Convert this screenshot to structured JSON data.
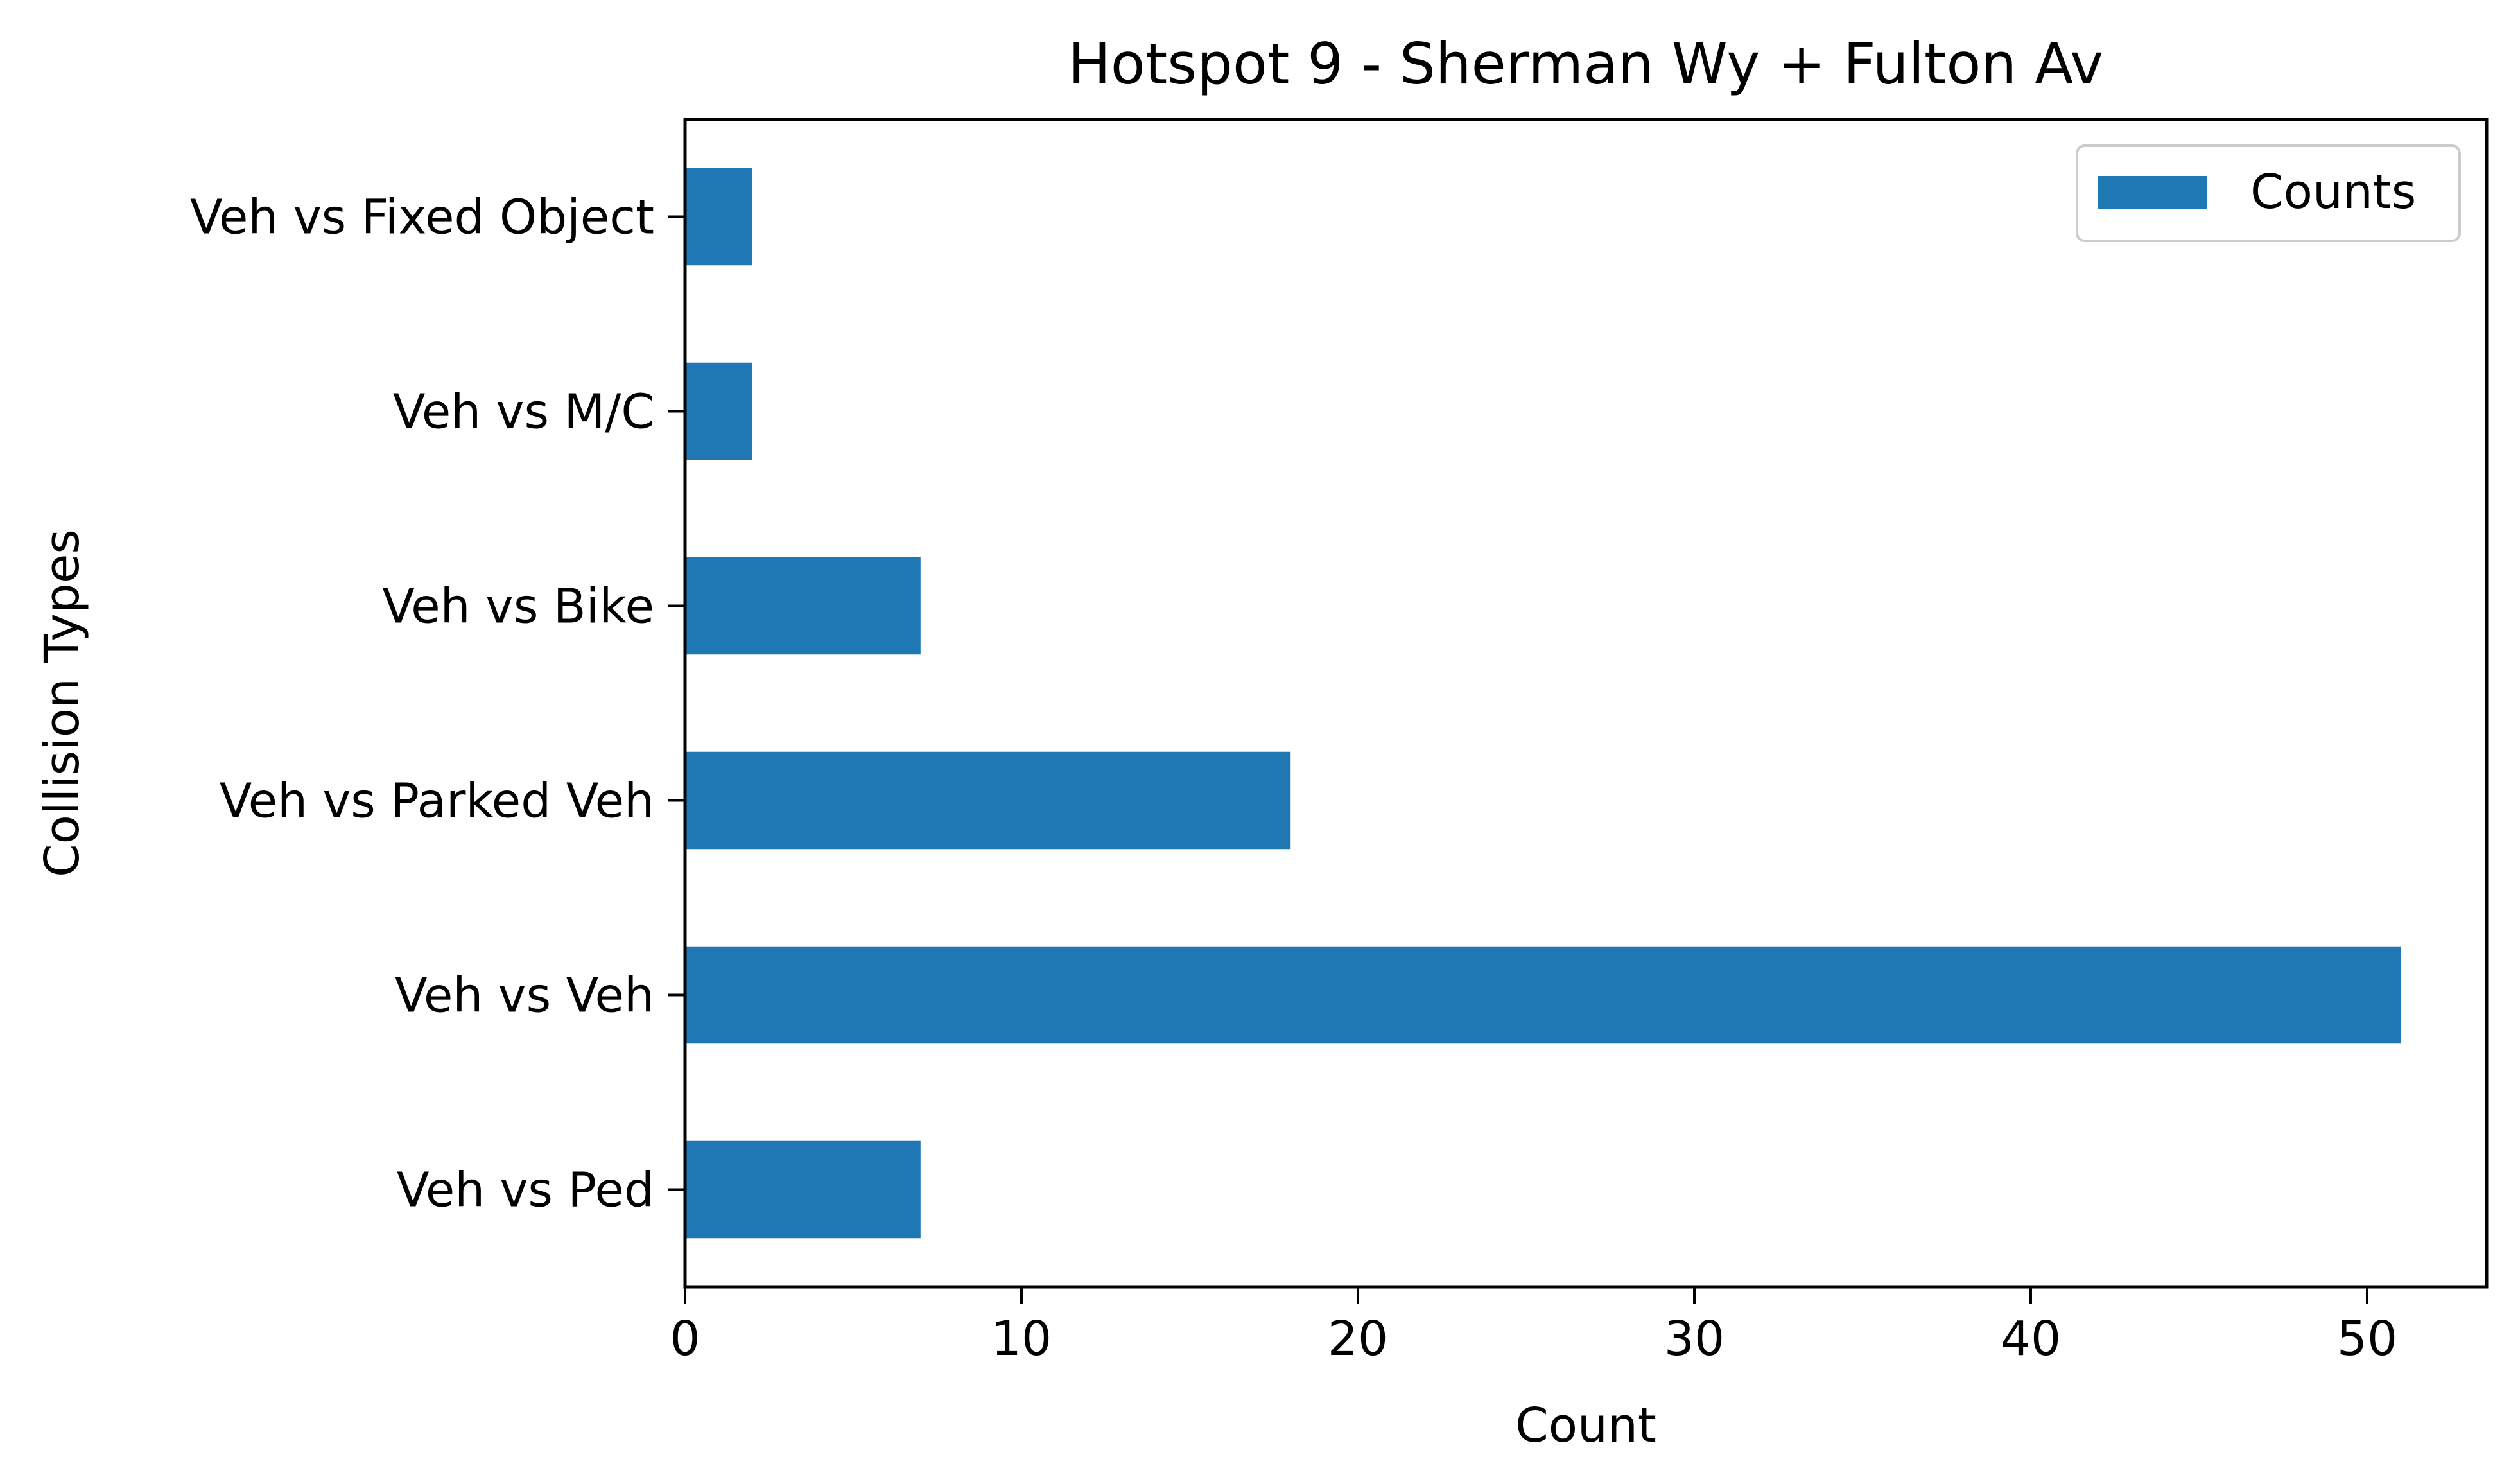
{
  "chart_data": {
    "type": "bar",
    "orientation": "horizontal",
    "title": "Hotspot 9 - Sherman Wy + Fulton Av",
    "xlabel": "Count",
    "ylabel": "Collision Types",
    "categories": [
      "Veh vs Ped",
      "Veh vs Veh",
      "Veh vs Parked Veh",
      "Veh vs Bike",
      "Veh vs M/C",
      "Veh vs Fixed Object"
    ],
    "series": [
      {
        "name": "Counts",
        "values": [
          7,
          51,
          18,
          7,
          2,
          2
        ],
        "color": "#1f77b4"
      }
    ],
    "xlim": [
      0,
      53.55
    ],
    "xticks": [
      0,
      10,
      20,
      30,
      40,
      50
    ],
    "grid": false,
    "legend": "top-right"
  }
}
